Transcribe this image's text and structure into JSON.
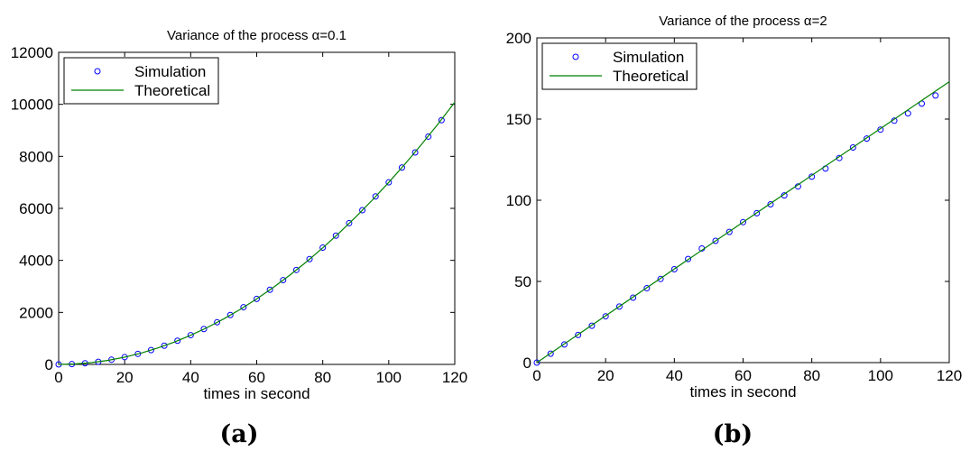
{
  "chart_data": [
    {
      "type": "scatter",
      "title": "Variance of the process α=0.1",
      "xlabel": "times in second",
      "ylabel": "",
      "caption": "(a)",
      "xlim": [
        0,
        120
      ],
      "ylim": [
        0,
        12000
      ],
      "xticks": [
        0,
        20,
        40,
        60,
        80,
        100,
        120
      ],
      "yticks": [
        0,
        2000,
        4000,
        6000,
        8000,
        10000,
        12000
      ],
      "grid": false,
      "legend": "top-left",
      "series": [
        {
          "name": "Simulation",
          "kind": "markers",
          "color": "#0000ff",
          "x": [
            0,
            4,
            8,
            12,
            16,
            20,
            24,
            28,
            32,
            36,
            40,
            44,
            48,
            52,
            56,
            60,
            64,
            68,
            72,
            76,
            80,
            84,
            88,
            92,
            96,
            100,
            104,
            108,
            112,
            116
          ],
          "y": [
            0,
            11,
            45,
            100,
            180,
            280,
            405,
            550,
            720,
            910,
            1125,
            1360,
            1620,
            1900,
            2200,
            2520,
            2870,
            3240,
            3630,
            4050,
            4490,
            4950,
            5430,
            5930,
            6460,
            7000,
            7570,
            8150,
            8760,
            9390
          ]
        },
        {
          "name": "Theoretical",
          "kind": "line",
          "color": "#008000",
          "x": [
            0,
            5,
            10,
            15,
            20,
            25,
            30,
            35,
            40,
            45,
            50,
            55,
            60,
            65,
            70,
            75,
            80,
            85,
            90,
            95,
            100,
            105,
            110,
            115,
            120
          ],
          "y": [
            0,
            17,
            70,
            157,
            280,
            437,
            630,
            857,
            1120,
            1417,
            1750,
            2117,
            2520,
            2957,
            3430,
            3937,
            4480,
            5057,
            5670,
            6317,
            7000,
            7717,
            8470,
            9257,
            10080
          ]
        }
      ]
    },
    {
      "type": "scatter",
      "title": "Variance of the process α=2",
      "xlabel": "times in second",
      "ylabel": "",
      "caption": "(b)",
      "xlim": [
        0,
        120
      ],
      "ylim": [
        0,
        200
      ],
      "xticks": [
        0,
        20,
        40,
        60,
        80,
        100,
        120
      ],
      "yticks": [
        0,
        50,
        100,
        150,
        200
      ],
      "grid": false,
      "legend": "top-left",
      "series": [
        {
          "name": "Simulation",
          "kind": "markers",
          "color": "#0000ff",
          "x": [
            0,
            4,
            8,
            12,
            16,
            20,
            24,
            28,
            32,
            36,
            40,
            44,
            48,
            52,
            56,
            60,
            64,
            68,
            72,
            76,
            80,
            84,
            88,
            92,
            96,
            100,
            104,
            108,
            112,
            116
          ],
          "y": [
            0,
            5.5,
            11.2,
            17,
            22.7,
            28.5,
            34.5,
            40,
            45.8,
            51.5,
            57.5,
            63.8,
            70.3,
            75,
            80.5,
            86.5,
            92,
            97.5,
            103,
            108.5,
            114.5,
            119.5,
            126,
            132.5,
            138,
            143.5,
            149,
            153.5,
            159.5,
            164.5
          ]
        },
        {
          "name": "Theoretical",
          "kind": "line",
          "color": "#008000",
          "x": [
            0,
            120
          ],
          "y": [
            0,
            173
          ]
        }
      ]
    }
  ]
}
